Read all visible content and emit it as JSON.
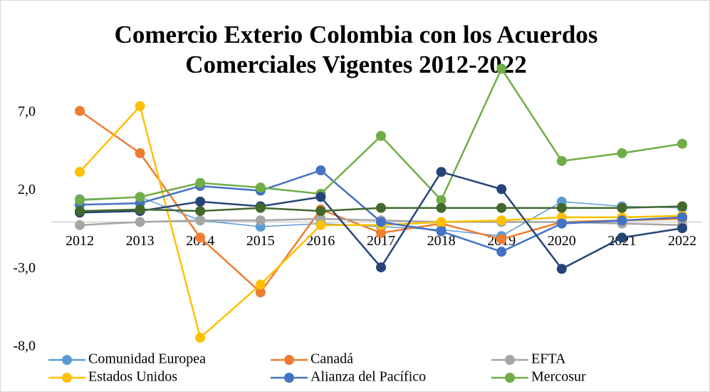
{
  "chart_data": {
    "type": "line",
    "title": [
      "Comercio Exterio Colombia con los Acuerdos",
      "Comerciales Vigentes 2012-2022"
    ],
    "categories": [
      "2012",
      "2013",
      "2014",
      "2015",
      "2016",
      "2017",
      "2018",
      "2019",
      "2020",
      "2021",
      "2022"
    ],
    "ylim": [
      -8,
      10
    ],
    "yticks": [
      {
        "value": 7,
        "label": "7,0"
      },
      {
        "value": 2,
        "label": "2,0"
      },
      {
        "value": -3,
        "label": "-3,0"
      },
      {
        "value": -8,
        "label": "-8,0"
      }
    ],
    "grid": false,
    "legend": "bottom",
    "series": [
      {
        "name": "Comunidad Europea",
        "color": "#5b9bd5",
        "values": [
          1.45,
          1.6,
          0.1,
          -0.3,
          -0.1,
          -0.3,
          -0.5,
          -0.9,
          1.3,
          1.0,
          0.9
        ]
      },
      {
        "name": "Canadá",
        "color": "#ed7d31",
        "values": [
          7.1,
          4.4,
          -1.0,
          -4.5,
          0.8,
          -0.7,
          -0.1,
          -1.1,
          0.0,
          0.1,
          0.2
        ]
      },
      {
        "name": "EFTA",
        "color": "#a5a5a5",
        "values": [
          -0.2,
          0.0,
          0.1,
          0.1,
          0.2,
          0.1,
          0.0,
          0.0,
          0.0,
          -0.1,
          -0.2
        ]
      },
      {
        "name": "Estados Unidos",
        "color": "#ffc000",
        "values": [
          3.2,
          7.4,
          -7.4,
          -4.0,
          -0.2,
          -0.2,
          0.0,
          0.1,
          0.3,
          0.3,
          0.4
        ]
      },
      {
        "name": "Alianza del Pacífico",
        "color": "#4472c4",
        "values": [
          1.1,
          1.2,
          2.3,
          2.0,
          3.3,
          0.0,
          -0.6,
          -1.9,
          -0.1,
          0.1,
          0.3
        ]
      },
      {
        "name": "Mercosur",
        "color": "#70ad47",
        "values": [
          1.4,
          1.6,
          2.5,
          2.2,
          1.8,
          5.5,
          1.4,
          9.8,
          3.9,
          4.4,
          5.0
        ]
      },
      {
        "color": "#264478",
        "values": [
          0.6,
          0.7,
          1.3,
          1.0,
          1.6,
          -2.9,
          3.2,
          2.1,
          -3.0,
          -1.0,
          -0.4
        ]
      },
      {
        "color": "#43682b",
        "values": [
          0.7,
          0.8,
          0.7,
          0.9,
          0.7,
          0.9,
          0.9,
          0.9,
          0.9,
          0.9,
          1.0
        ]
      }
    ]
  }
}
